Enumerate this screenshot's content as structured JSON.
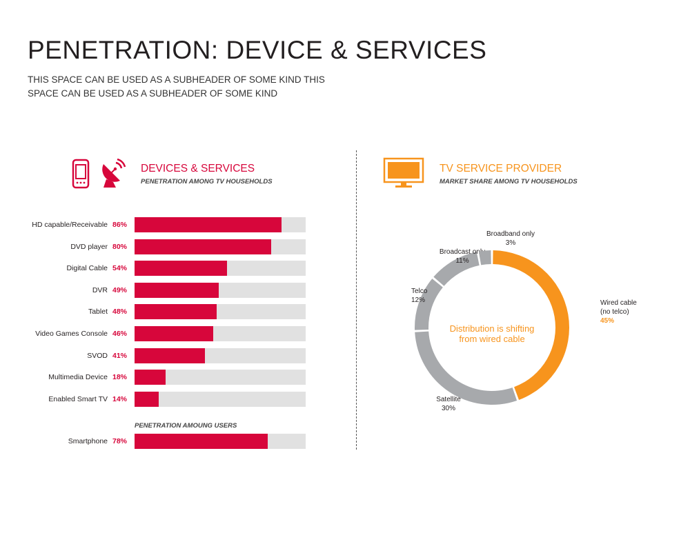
{
  "page": {
    "title": "PENETRATION: DEVICE & SERVICES",
    "subtitle": "THIS SPACE CAN BE USED AS A SUBHEADER OF SOME KIND THIS SPACE CAN BE USED AS A SUBHEADER OF SOME KIND"
  },
  "left": {
    "title": "DEVICES & SERVICES",
    "subtitle": "PENETRATION AMONG TV HOUSEHOLDS",
    "users_heading": "PENETRATION AMOUNG USERS",
    "icons": [
      "smartphone-icon",
      "satellite-dish-icon"
    ]
  },
  "right": {
    "title": "TV SERVICE PROVIDER",
    "subtitle": "MARKET SHARE AMONG TV HOUSEHOLDS",
    "icons": [
      "tv-icon"
    ]
  },
  "colors": {
    "red": "#d7063b",
    "orange": "#f7941d",
    "gray": "#a7a9ac",
    "track": "#e1e1e1"
  },
  "chart_data": [
    {
      "type": "bar",
      "orientation": "horizontal",
      "categories": [
        "HD capable/Receivable",
        "DVD player",
        "Digital Cable",
        "DVR",
        "Tablet",
        "Video Games Console",
        "SVOD",
        "Multimedia Device",
        "Enabled Smart TV"
      ],
      "values": [
        86,
        80,
        54,
        49,
        48,
        46,
        41,
        18,
        14
      ],
      "labels": [
        "86%",
        "80%",
        "54%",
        "49%",
        "48%",
        "46%",
        "41%",
        "18%",
        "14%"
      ],
      "xlim": [
        0,
        100
      ]
    },
    {
      "type": "bar",
      "orientation": "horizontal",
      "categories": [
        "Smartphone"
      ],
      "values": [
        78
      ],
      "labels": [
        "78%"
      ],
      "xlim": [
        0,
        100
      ]
    },
    {
      "type": "pie",
      "style": "donut",
      "center_text": [
        "Distribution is shifting",
        "from wired cable"
      ],
      "slices": [
        {
          "label": [
            "Wired cable",
            "(no telco)"
          ],
          "pct_label": "45%",
          "value": 45,
          "color": "#f7941d"
        },
        {
          "label": [
            "Satellite"
          ],
          "pct_label": "30%",
          "value": 30,
          "color": "#a7a9ac"
        },
        {
          "label": [
            "Telco"
          ],
          "pct_label": "12%",
          "value": 12,
          "color": "#a7a9ac"
        },
        {
          "label": [
            "Broadcast only"
          ],
          "pct_label": "11%",
          "value": 11,
          "color": "#a7a9ac"
        },
        {
          "label": [
            "Broadband only"
          ],
          "pct_label": "3%",
          "value": 3,
          "color": "#a7a9ac"
        }
      ]
    }
  ]
}
